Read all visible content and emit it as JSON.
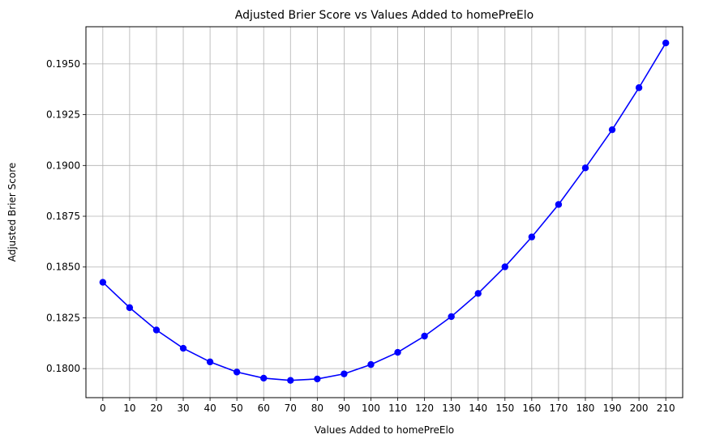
{
  "chart_data": {
    "type": "line",
    "title": "Adjusted Brier Score vs Values Added to homePreElo",
    "xlabel": "Values Added to homePreElo",
    "ylabel": "Adjusted Brier Score",
    "x": [
      0,
      10,
      20,
      30,
      40,
      50,
      60,
      70,
      80,
      90,
      100,
      110,
      120,
      130,
      140,
      150,
      160,
      170,
      180,
      190,
      200,
      210
    ],
    "x_tick_labels": [
      "0",
      "10",
      "20",
      "30",
      "40",
      "50",
      "60",
      "70",
      "80",
      "90",
      "100",
      "110",
      "120",
      "130",
      "140",
      "150",
      "160",
      "170",
      "180",
      "190",
      "200",
      "210"
    ],
    "y_ticks": [
      0.18,
      0.1825,
      0.185,
      0.1875,
      0.19,
      0.1925,
      0.195
    ],
    "y_tick_labels": [
      "0.1800",
      "0.1825",
      "0.1850",
      "0.1875",
      "0.1900",
      "0.1925",
      "0.1950"
    ],
    "xlim": [
      -6.3,
      216.3
    ],
    "ylim": [
      0.17857,
      0.19683
    ],
    "grid": true,
    "series": [
      {
        "color": "#0000ff",
        "marker": "circle",
        "values": [
          0.18425,
          0.183,
          0.1819,
          0.181,
          0.18033,
          0.17983,
          0.17953,
          0.17942,
          0.17949,
          0.17974,
          0.1802,
          0.1808,
          0.1816,
          0.18256,
          0.1837,
          0.18501,
          0.18648,
          0.18808,
          0.18988,
          0.19176,
          0.19383,
          0.19603
        ]
      }
    ]
  }
}
